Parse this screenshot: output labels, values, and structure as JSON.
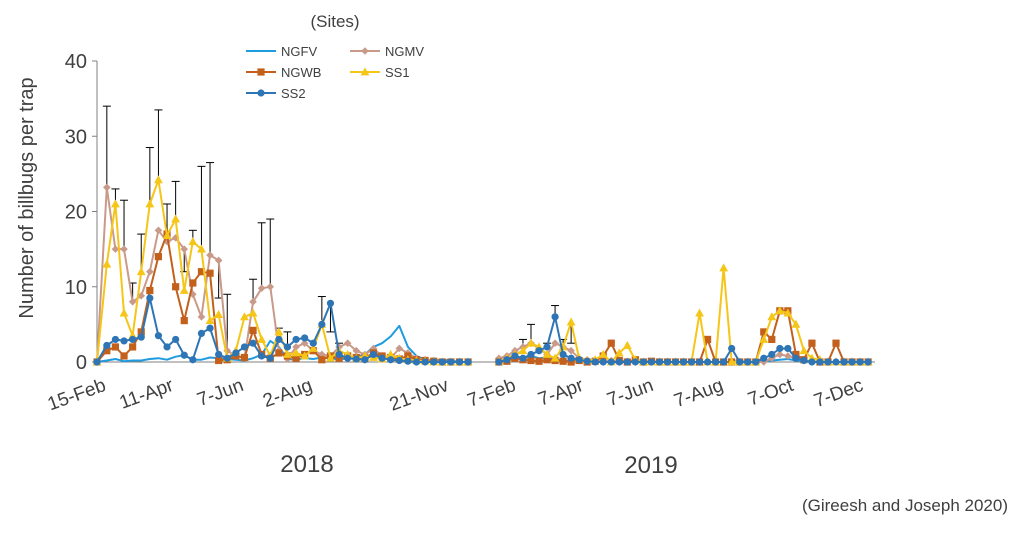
{
  "chart_data": {
    "type": "line",
    "title": "",
    "ylabel": "Number of billbugs per trap",
    "ylim": [
      0,
      40
    ],
    "yticks": [
      0,
      10,
      20,
      30,
      40
    ],
    "legend_title": "(Sites)",
    "legend_position": "top-left",
    "credit": "(Gireesh and Joseph 2020)",
    "grid": false,
    "panels": [
      {
        "year_label": "2018",
        "xlim": [
          "2018-02-15",
          "2018-12-18"
        ],
        "xtick_labels": [
          "15-Feb",
          "11-Apr",
          "7-Jun",
          "2-Aug",
          "21-Nov"
        ],
        "xtick_dates": [
          "2018-02-15",
          "2018-04-11",
          "2018-06-07",
          "2018-08-02",
          "2018-11-21"
        ],
        "x": [
          "2018-02-15",
          "2018-02-23",
          "2018-03-02",
          "2018-03-09",
          "2018-03-16",
          "2018-03-23",
          "2018-03-30",
          "2018-04-06",
          "2018-04-13",
          "2018-04-20",
          "2018-04-27",
          "2018-05-04",
          "2018-05-11",
          "2018-05-18",
          "2018-05-25",
          "2018-06-01",
          "2018-06-08",
          "2018-06-15",
          "2018-06-22",
          "2018-06-29",
          "2018-07-06",
          "2018-07-13",
          "2018-07-20",
          "2018-07-27",
          "2018-08-03",
          "2018-08-10",
          "2018-08-17",
          "2018-08-24",
          "2018-08-31",
          "2018-09-07",
          "2018-09-14",
          "2018-09-21",
          "2018-09-28",
          "2018-10-05",
          "2018-10-12",
          "2018-10-19",
          "2018-10-26",
          "2018-11-02",
          "2018-11-09",
          "2018-11-16",
          "2018-11-23",
          "2018-11-30",
          "2018-12-07",
          "2018-12-14"
        ],
        "series": [
          {
            "name": "NGFV",
            "values": [
              0,
              0.2,
              0.4,
              0.1,
              0.2,
              0.2,
              0.4,
              0.5,
              0.3,
              0.7,
              0.9,
              0.3,
              0.3,
              0.6,
              0.5,
              0.4,
              0.3,
              0.2,
              0.5,
              1.0,
              2.8,
              2.0,
              0.4,
              0.3,
              0.5,
              0.4,
              0.6,
              0.5,
              0.3,
              0.5,
              0.7,
              1.0,
              2.0,
              2.5,
              3.4,
              4.8,
              2.0,
              0.8,
              0.3,
              0.2,
              0.3,
              0.2,
              0,
              0
            ]
          },
          {
            "name": "NGMV",
            "values": [
              0,
              23.2,
              15.0,
              15.0,
              8.0,
              8.8,
              12.0,
              17.5,
              16.0,
              16.5,
              15.0,
              9.0,
              6.0,
              14.2,
              13.5,
              1.5,
              0.8,
              0.5,
              8.0,
              9.8,
              10.0,
              1.5,
              0.4,
              2.0,
              2.5,
              1.5,
              1.0,
              0.8,
              2.0,
              2.5,
              1.5,
              1.0,
              1.8,
              0.8,
              0.5,
              1.8,
              1.2,
              0.5,
              0.3,
              0.2,
              0,
              0,
              0,
              0
            ]
          },
          {
            "name": "NGWB",
            "values": [
              0,
              1.5,
              2.0,
              0.8,
              2.0,
              4.0,
              9.5,
              14.0,
              17.0,
              10.0,
              5.5,
              10.5,
              12.0,
              11.8,
              0.2,
              0.3,
              0.8,
              0.6,
              4.2,
              1.0,
              0.5,
              1.2,
              0.8,
              0.5,
              1.0,
              1.5,
              0.3,
              0.8,
              0.5,
              0.8,
              0.6,
              0.5,
              1.2,
              0.8,
              0.6,
              0.4,
              0.8,
              0.3,
              0.2,
              0.1,
              0,
              0,
              0,
              0
            ]
          },
          {
            "name": "SS1",
            "values": [
              0,
              13.0,
              21.0,
              6.5,
              3.5,
              12.0,
              21.0,
              24.2,
              16.8,
              19.0,
              9.5,
              16.0,
              15.0,
              5.5,
              6.3,
              0.5,
              1.5,
              6.0,
              6.5,
              3.0,
              0.8,
              4.0,
              1.0,
              1.2,
              0.8,
              1.8,
              5.0,
              0.5,
              1.5,
              1.0,
              0.5,
              0.8,
              0.6,
              0.4,
              1.0,
              0.5,
              0.3,
              0.2,
              0.1,
              0,
              0,
              0,
              0,
              0
            ]
          },
          {
            "name": "SS2",
            "values": [
              0,
              2.2,
              3.0,
              2.8,
              3.0,
              3.3,
              8.5,
              3.5,
              2.0,
              3.0,
              0.9,
              0.3,
              3.8,
              4.5,
              1.0,
              0.5,
              1.2,
              2.0,
              2.5,
              0.8,
              0.5,
              3.0,
              2.0,
              3.0,
              3.2,
              2.5,
              5.0,
              7.8,
              1.0,
              0.5,
              0.4,
              0.3,
              1.0,
              0.5,
              0.3,
              0.2,
              0.1,
              0,
              0,
              0,
              0,
              0,
              0,
              0
            ]
          }
        ],
        "error_bars": {
          "x_index": [
            1,
            2,
            3,
            4,
            5,
            6,
            7,
            8,
            9,
            10,
            11,
            12,
            13,
            14,
            15,
            18,
            19,
            20,
            21,
            22,
            26,
            27,
            28
          ],
          "upper": [
            34,
            23,
            21.5,
            10.5,
            17,
            28.5,
            33.5,
            21,
            24,
            12,
            17.5,
            26,
            26.5,
            8.5,
            9,
            11,
            18.5,
            19,
            4.5,
            4,
            8.7,
            4,
            2.5
          ]
        }
      },
      {
        "year_label": "2019",
        "xlim": [
          "2019-01-25",
          "2019-12-25"
        ],
        "xtick_labels": [
          "7-Feb",
          "7-Apr",
          "7-Jun",
          "7-Aug",
          "7-Oct",
          "7-Dec"
        ],
        "xtick_dates": [
          "2019-02-07",
          "2019-04-07",
          "2019-06-07",
          "2019-08-07",
          "2019-10-07",
          "2019-12-07"
        ],
        "x": [
          "2019-01-31",
          "2019-02-07",
          "2019-02-14",
          "2019-02-21",
          "2019-02-28",
          "2019-03-07",
          "2019-03-14",
          "2019-03-21",
          "2019-03-28",
          "2019-04-04",
          "2019-04-11",
          "2019-04-18",
          "2019-04-25",
          "2019-05-02",
          "2019-05-09",
          "2019-05-16",
          "2019-05-23",
          "2019-05-30",
          "2019-06-06",
          "2019-06-13",
          "2019-06-20",
          "2019-06-27",
          "2019-07-04",
          "2019-07-11",
          "2019-07-18",
          "2019-07-25",
          "2019-08-01",
          "2019-08-08",
          "2019-08-15",
          "2019-08-22",
          "2019-08-29",
          "2019-09-05",
          "2019-09-12",
          "2019-09-19",
          "2019-09-26",
          "2019-10-03",
          "2019-10-10",
          "2019-10-17",
          "2019-10-24",
          "2019-10-31",
          "2019-11-07",
          "2019-11-14",
          "2019-11-21",
          "2019-11-28",
          "2019-12-05",
          "2019-12-12",
          "2019-12-19"
        ],
        "series": [
          {
            "name": "NGFV",
            "values": [
              0.2,
              0.3,
              0.5,
              0.4,
              0.8,
              0.5,
              0.6,
              0.3,
              0.2,
              0.1,
              0.2,
              0.1,
              0.2,
              0,
              0,
              0.1,
              0,
              0,
              0.1,
              0,
              0,
              0,
              0,
              0,
              0,
              0,
              0,
              0,
              0,
              0,
              0.1,
              0,
              0,
              0.1,
              0.2,
              0.3,
              0.4,
              0.2,
              0.1,
              0,
              0,
              0,
              0,
              0,
              0,
              0,
              0
            ]
          },
          {
            "name": "NGMV",
            "values": [
              0.5,
              0.8,
              1.5,
              2.0,
              2.5,
              1.8,
              1.0,
              2.5,
              2.0,
              1.5,
              0.5,
              0.3,
              0.2,
              0.1,
              0.2,
              0,
              0.1,
              0,
              0,
              0,
              0,
              0,
              0,
              0,
              0,
              0,
              0,
              0,
              0,
              0,
              0,
              0,
              0,
              0,
              0.5,
              1.0,
              0.8,
              0.5,
              0.2,
              0.1,
              0,
              0,
              0,
              0,
              0,
              0,
              0
            ]
          },
          {
            "name": "NGWB",
            "values": [
              0,
              0.1,
              0.5,
              0.3,
              0.2,
              0.1,
              0.3,
              0.2,
              0.1,
              0,
              0.2,
              0,
              0.1,
              0.8,
              2.5,
              0.2,
              0,
              0.3,
              0,
              0.1,
              0,
              0,
              0,
              0,
              0,
              0,
              3.0,
              0,
              0,
              0,
              0,
              0,
              0,
              4.0,
              3.0,
              6.8,
              6.8,
              1.0,
              0.3,
              2.5,
              0,
              0,
              2.5,
              0,
              0,
              0,
              0
            ]
          },
          {
            "name": "SS1",
            "values": [
              0.1,
              0.5,
              1.0,
              1.5,
              2.5,
              2.0,
              1.0,
              0.5,
              2.0,
              5.3,
              0.5,
              0.2,
              0.3,
              1.0,
              0,
              1.2,
              2.2,
              0.3,
              0,
              0,
              0,
              0,
              0,
              0,
              0,
              6.5,
              0,
              0,
              12.5,
              0,
              0,
              0,
              0,
              3.0,
              6.0,
              6.8,
              6.5,
              5.0,
              1.5,
              0.5,
              0.3,
              0,
              0,
              0,
              0,
              0,
              0
            ]
          },
          {
            "name": "SS2",
            "values": [
              0,
              0.3,
              0.8,
              0.5,
              1.0,
              1.5,
              2.0,
              6.0,
              1.0,
              0.5,
              0.3,
              0.1,
              0,
              0,
              0,
              0,
              0,
              0,
              0,
              0,
              0,
              0,
              0,
              0,
              0,
              0,
              0,
              0,
              0,
              1.8,
              0,
              0,
              0,
              0.5,
              1.0,
              1.8,
              1.8,
              0.5,
              0.2,
              0,
              0,
              0,
              0,
              0,
              0,
              0,
              0
            ]
          }
        ],
        "error_bars": {
          "x_index": [
            3,
            4,
            6,
            7,
            8,
            9
          ],
          "upper": [
            3,
            5,
            2.5,
            7.5,
            3,
            2.5
          ]
        }
      }
    ]
  },
  "colors": {
    "NGFV": "#1f9be0",
    "NGMV": "#c99a8a",
    "NGWB": "#c2601c",
    "SS1": "#f5c518",
    "SS2": "#2e75b6",
    "axis": "#808080",
    "text": "#404040",
    "error_bar": "#000000"
  },
  "markers": {
    "NGFV": "none",
    "NGMV": "diamond",
    "NGWB": "square",
    "SS1": "triangle",
    "SS2": "circle"
  }
}
